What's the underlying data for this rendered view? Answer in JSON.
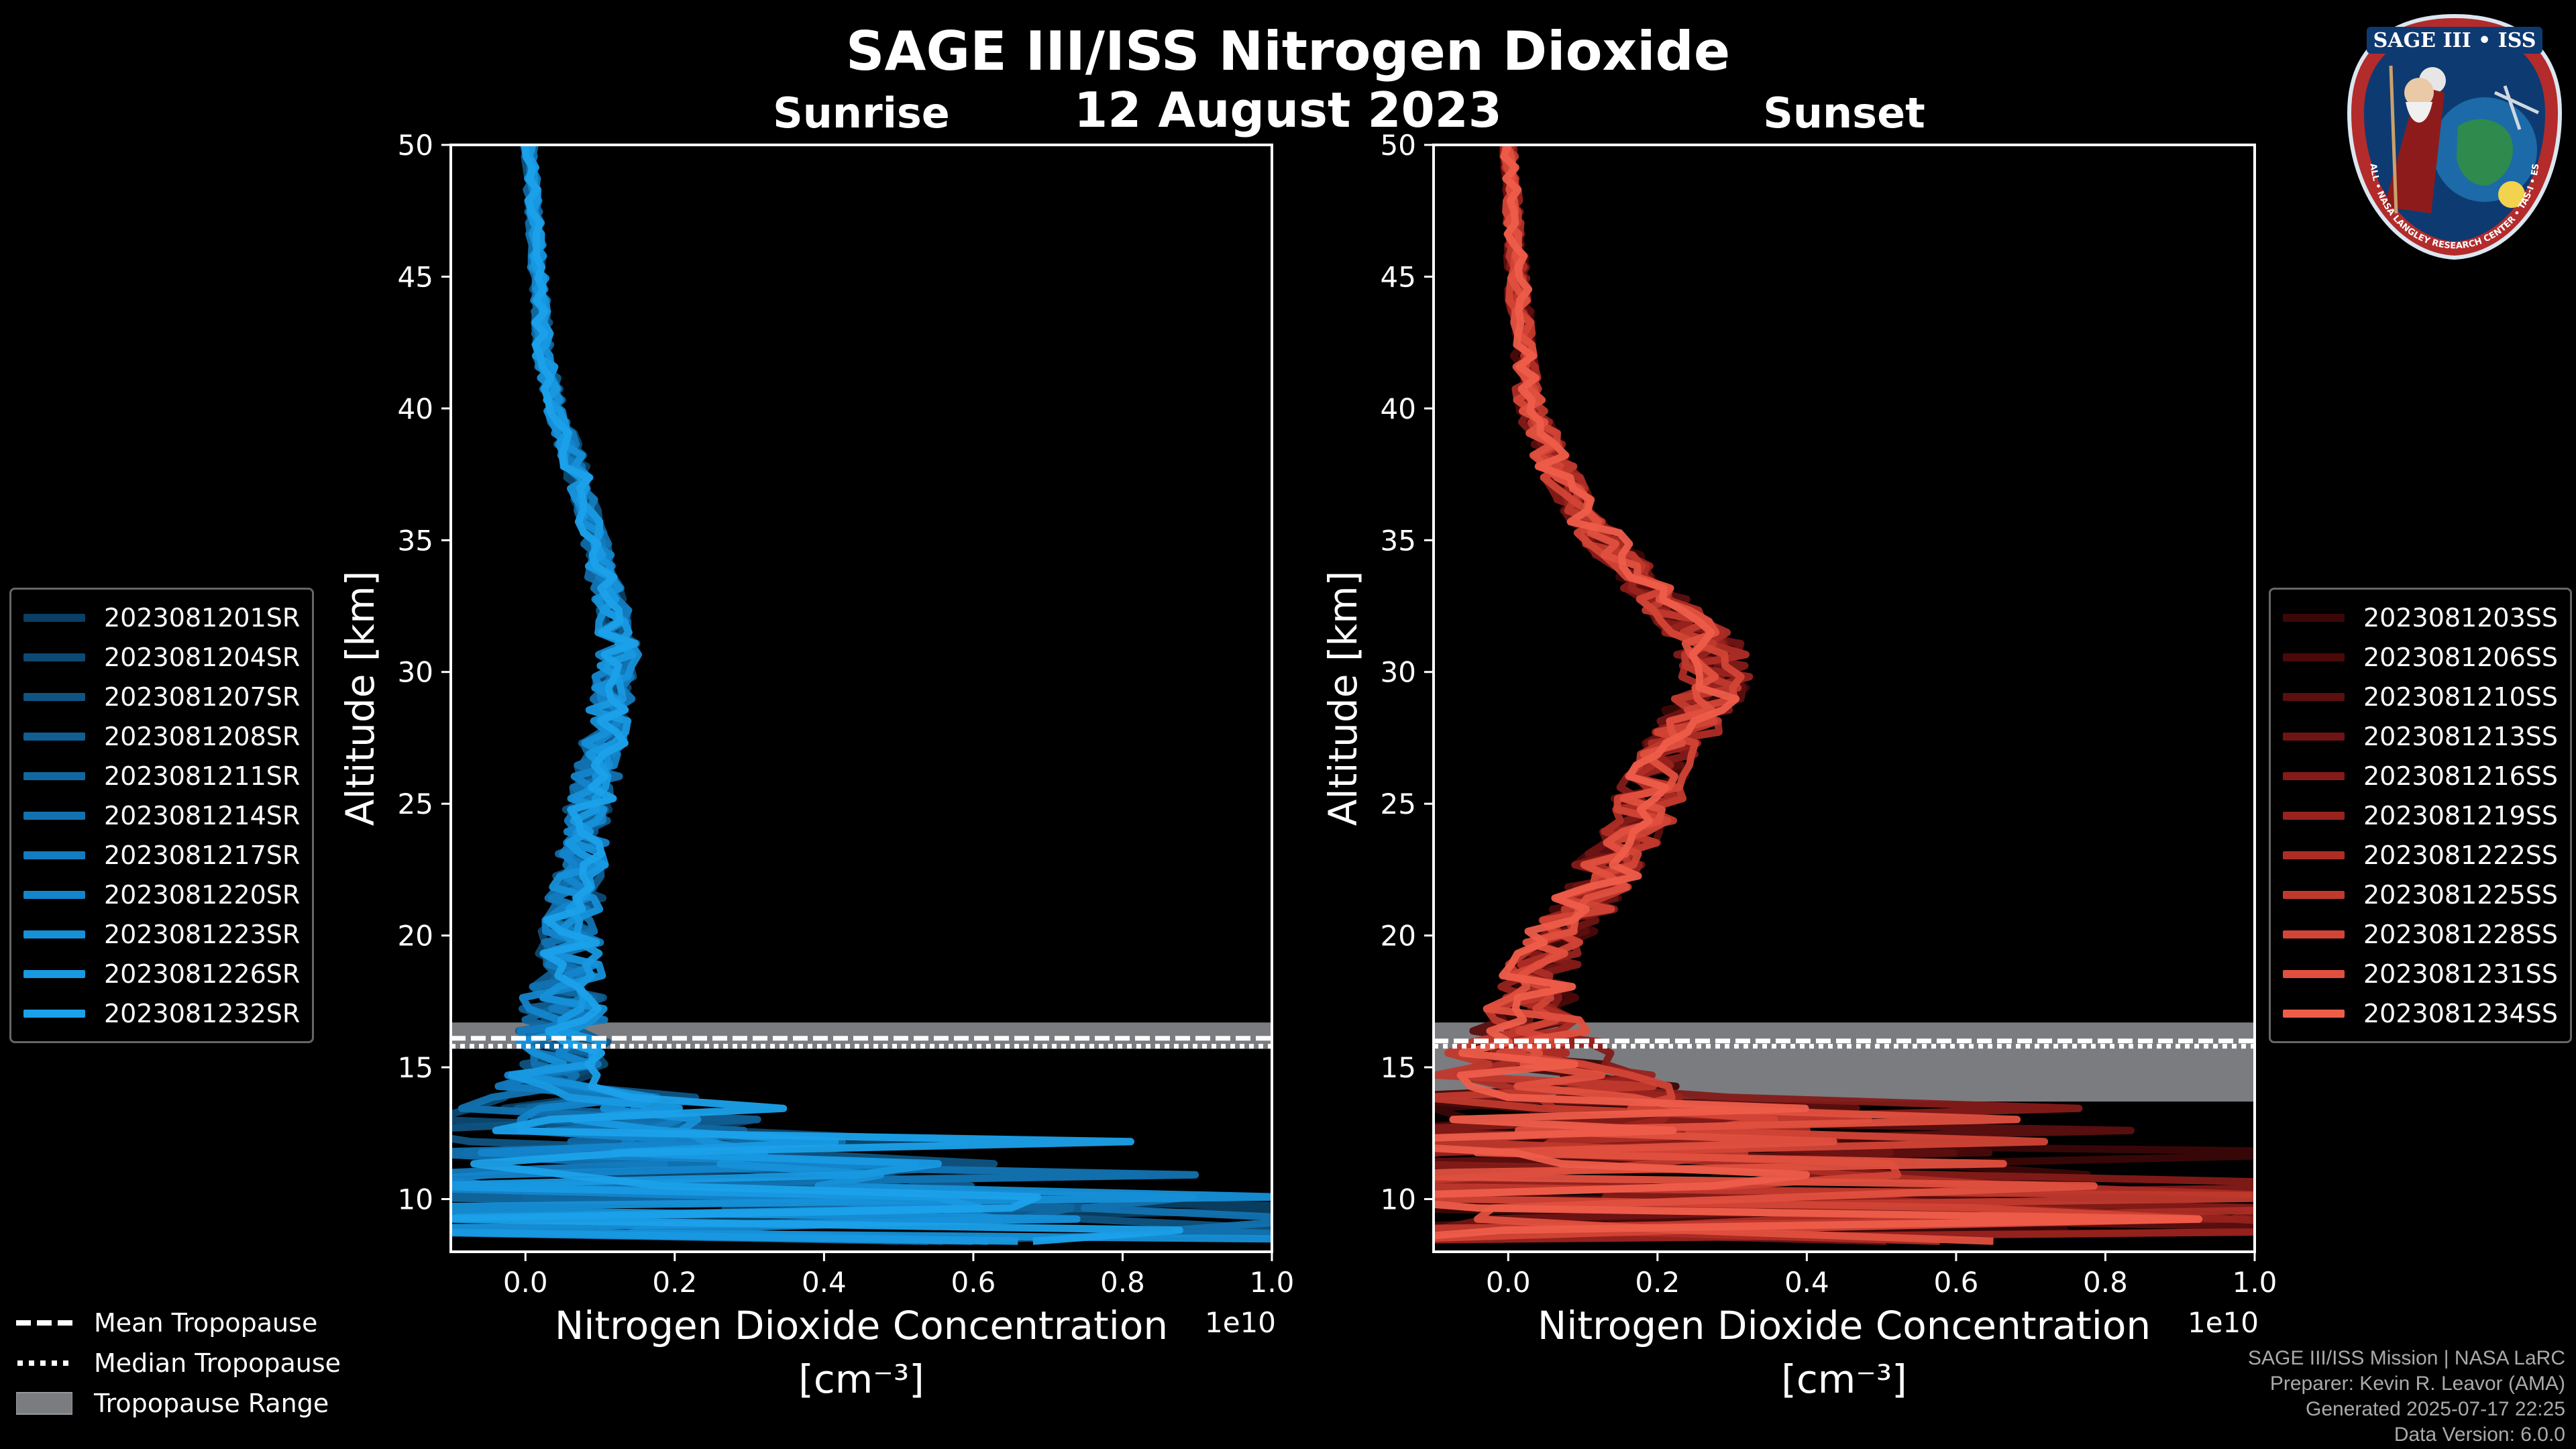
{
  "header": {
    "title": "SAGE III/ISS Nitrogen Dioxide",
    "date": "12 August 2023"
  },
  "chart_data": [
    {
      "type": "line",
      "panel": "Sunrise",
      "title": "Sunrise",
      "xlabel": "Nitrogen Dioxide Concentration",
      "xlabel_units": "[cm⁻³]",
      "x_multiplier": "1e10",
      "ylabel": "Altitude [km]",
      "xlim": [
        -0.1,
        1.0
      ],
      "ylim": [
        8,
        50
      ],
      "x_ticks": [
        "0.0",
        "0.2",
        "0.4",
        "0.6",
        "0.8",
        "1.0"
      ],
      "y_ticks": [
        "10",
        "15",
        "20",
        "25",
        "30",
        "35",
        "40",
        "45",
        "50"
      ],
      "tropopause": {
        "mean": 16.1,
        "median": 15.8,
        "range": [
          15.7,
          16.7
        ]
      },
      "series_names": [
        "2023081201SR",
        "2023081204SR",
        "2023081207SR",
        "2023081208SR",
        "2023081211SR",
        "2023081214SR",
        "2023081217SR",
        "2023081220SR",
        "2023081223SR",
        "2023081226SR",
        "2023081232SR"
      ],
      "series_colors": [
        "#0b3f63",
        "#0d4a73",
        "#0f5482",
        "#105e92",
        "#1168a1",
        "#1272b0",
        "#137bbf",
        "#1485cc",
        "#1690d8",
        "#1899e2",
        "#1ba1ea"
      ],
      "mean_profile": {
        "altitude": [
          8.5,
          9.5,
          10.5,
          11.5,
          12.5,
          13.5,
          14.5,
          15.5,
          16.5,
          17.5,
          18.5,
          20,
          22,
          24,
          26,
          28,
          30,
          31,
          32,
          34,
          36,
          38,
          40,
          42,
          44,
          46,
          48,
          50
        ],
        "value": [
          0.3,
          0.25,
          0.22,
          0.15,
          0.09,
          0.06,
          0.05,
          0.045,
          0.05,
          0.05,
          0.055,
          0.06,
          0.07,
          0.08,
          0.095,
          0.11,
          0.12,
          0.125,
          0.12,
          0.1,
          0.085,
          0.065,
          0.04,
          0.025,
          0.02,
          0.015,
          0.01,
          0.005
        ],
        "spread": [
          0.7,
          0.6,
          0.5,
          0.35,
          0.3,
          0.15,
          0.1,
          0.08,
          0.08,
          0.07,
          0.06,
          0.05,
          0.045,
          0.04,
          0.04,
          0.035,
          0.035,
          0.035,
          0.03,
          0.025,
          0.02,
          0.02,
          0.015,
          0.015,
          0.012,
          0.012,
          0.01,
          0.01
        ]
      }
    },
    {
      "type": "line",
      "panel": "Sunset",
      "title": "Sunset",
      "xlabel": "Nitrogen Dioxide Concentration",
      "xlabel_units": "[cm⁻³]",
      "x_multiplier": "1e10",
      "ylabel": "Altitude [km]",
      "xlim": [
        -0.1,
        1.0
      ],
      "ylim": [
        8,
        50
      ],
      "x_ticks": [
        "0.0",
        "0.2",
        "0.4",
        "0.6",
        "0.8",
        "1.0"
      ],
      "y_ticks": [
        "10",
        "15",
        "20",
        "25",
        "30",
        "35",
        "40",
        "45",
        "50"
      ],
      "tropopause": {
        "mean": 16.0,
        "median": 15.8,
        "range": [
          13.7,
          16.7
        ]
      },
      "series_names": [
        "2023081203SS",
        "2023081206SS",
        "2023081210SS",
        "2023081213SS",
        "2023081216SS",
        "2023081219SS",
        "2023081222SS",
        "2023081225SS",
        "2023081228SS",
        "2023081231SS",
        "2023081234SS"
      ],
      "series_colors": [
        "#3a0707",
        "#4a0a0a",
        "#5c0f0f",
        "#6f1414",
        "#841b18",
        "#98231e",
        "#ad2d25",
        "#c0392d",
        "#d24536",
        "#e0503f",
        "#ee5d4a"
      ],
      "mean_profile": {
        "altitude": [
          8.5,
          9.5,
          10.5,
          11.5,
          12.5,
          13.5,
          14.5,
          15.5,
          16.5,
          17.5,
          18.5,
          20,
          22,
          24,
          26,
          28,
          29,
          30,
          31,
          32,
          34,
          36,
          38,
          40,
          42,
          44,
          46,
          48,
          50
        ],
        "value": [
          0.35,
          0.3,
          0.25,
          0.2,
          0.15,
          0.08,
          0.05,
          0.03,
          0.03,
          0.035,
          0.04,
          0.07,
          0.12,
          0.17,
          0.2,
          0.24,
          0.27,
          0.28,
          0.27,
          0.23,
          0.16,
          0.1,
          0.06,
          0.03,
          0.02,
          0.015,
          0.01,
          0.005,
          0.0
        ],
        "spread": [
          0.8,
          0.7,
          0.6,
          0.5,
          0.4,
          0.3,
          0.2,
          0.15,
          0.1,
          0.07,
          0.06,
          0.06,
          0.06,
          0.06,
          0.06,
          0.06,
          0.06,
          0.06,
          0.06,
          0.05,
          0.04,
          0.035,
          0.03,
          0.025,
          0.02,
          0.02,
          0.015,
          0.012,
          0.01
        ]
      }
    }
  ],
  "bottom_legend": {
    "mean": "Mean Tropopause",
    "median": "Median Tropopause",
    "range": "Tropopause Range"
  },
  "footer": {
    "line1": "SAGE III/ISS Mission | NASA LaRC",
    "line2": "Preparer: Kevin R. Leavor (AMA)",
    "line3": "Generated 2025-07-17 22:25",
    "line4": "Data Version: 6.0.0"
  },
  "logo": {
    "top_text": "SAGE III • ISS",
    "ring_text": "BALL • NASA LANGLEY RESEARCH CENTER • TAS-I • ESA"
  },
  "colors": {
    "range_fill": "#7a7c80",
    "axis": "#ffffff"
  }
}
